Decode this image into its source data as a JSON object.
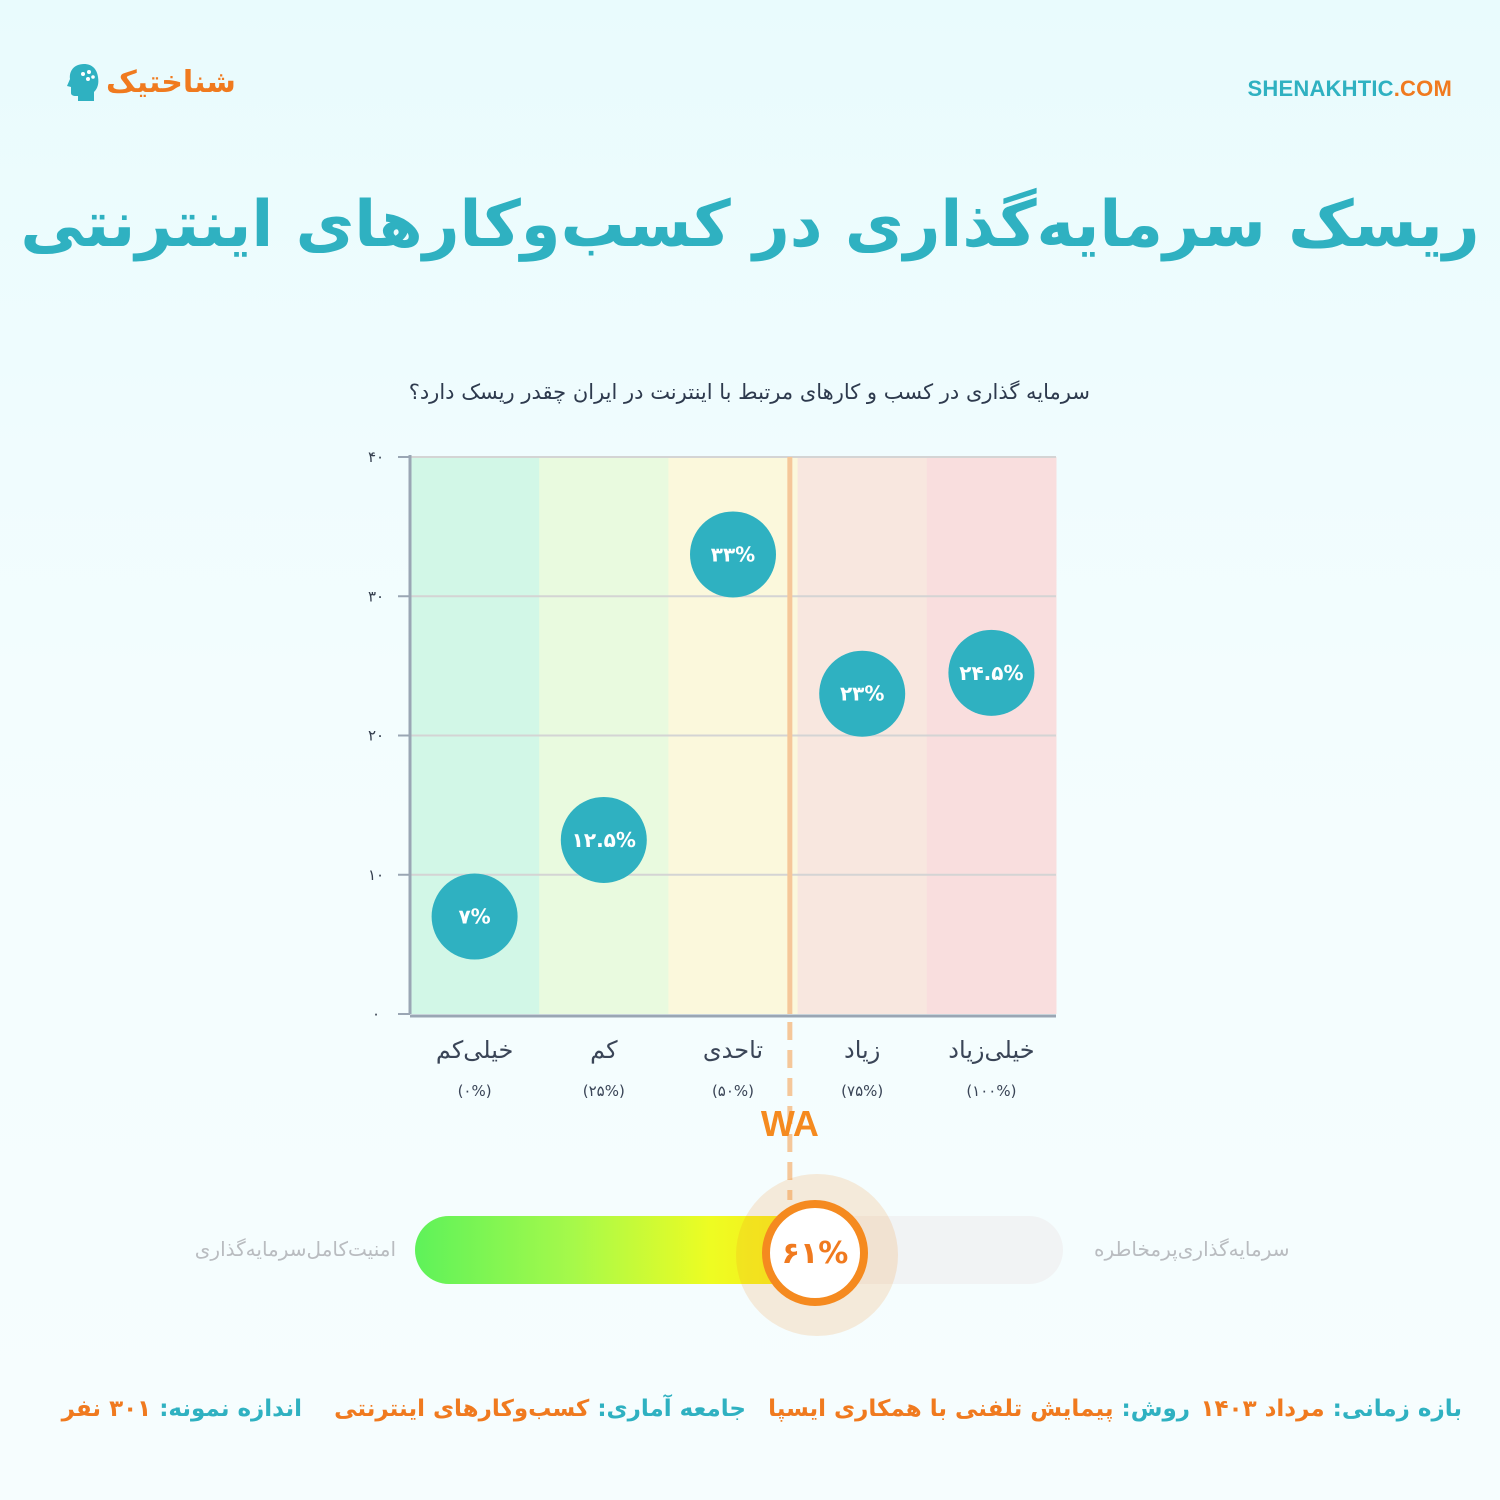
{
  "brand": {
    "logo_text": "شناختیک",
    "logo_icon": "head-silhouette-icon",
    "site_name": "SHENAKHTIC",
    "site_tld": ".COM"
  },
  "title": "ریسک سرمایه‌گذاری در کسب‌وکارهای اینترنتی",
  "question": "سرمایه گذاری در کسب و کارهای مرتبط با اینترنت در ایران چقدر ریسک دارد؟",
  "colors": {
    "accent": "#2fb1c1",
    "orange": "#f58a1f",
    "bubble": "#2fb1c1",
    "grid": "#d4d4d4"
  },
  "chart_data": {
    "type": "scatter",
    "title": "سرمایه گذاری در کسب و کارهای مرتبط با اینترنت در ایران چقدر ریسک دارد؟",
    "categories": [
      "خیلی‌کم",
      "کم",
      "تاحدی",
      "زیاد",
      "خیلی‌زیاد"
    ],
    "category_sublabels": [
      "(۰%)",
      "(۲۵%)",
      "(۵۰%)",
      "(۷۵%)",
      "(۱۰۰%)"
    ],
    "band_colors": [
      "#d2f7e7",
      "#e9fadf",
      "#fbf8dc",
      "#f8e7df",
      "#f9dede"
    ],
    "values": [
      7,
      12.5,
      33,
      23,
      24.5
    ],
    "value_labels": [
      "۷%",
      "۱۲.۵%",
      "۳۳%",
      "۲۳%",
      "۲۴.۵%"
    ],
    "ylim": [
      0,
      40
    ],
    "yticks": [
      0,
      10,
      20,
      30,
      40
    ],
    "ytick_labels": [
      "۰",
      "۱۰",
      "۲۰",
      "۳۰",
      "۴۰"
    ],
    "grid": true,
    "weighted_average": {
      "label": "WA",
      "value": 61,
      "value_label": "۶۱%"
    }
  },
  "gauge": {
    "value": 0.61,
    "label": "۶۱%",
    "left_label": "امنیت‌کامل‌سرمایه‌گذاری",
    "right_label": "سرمایه‌گذاری‌پرمخاطره"
  },
  "footer": {
    "period_key": "بازه زمانی:",
    "period_val": "مرداد ۱۴۰۳",
    "method_key": "روش:",
    "method_val": "پیمایش تلفنی با همکاری ایسپا",
    "population_key": "جامعه آماری:",
    "population_val": "کسب‌وکارهای اینترنتی",
    "sample_key": "اندازه نمونه:",
    "sample_val": "۳۰۱ نفر"
  }
}
